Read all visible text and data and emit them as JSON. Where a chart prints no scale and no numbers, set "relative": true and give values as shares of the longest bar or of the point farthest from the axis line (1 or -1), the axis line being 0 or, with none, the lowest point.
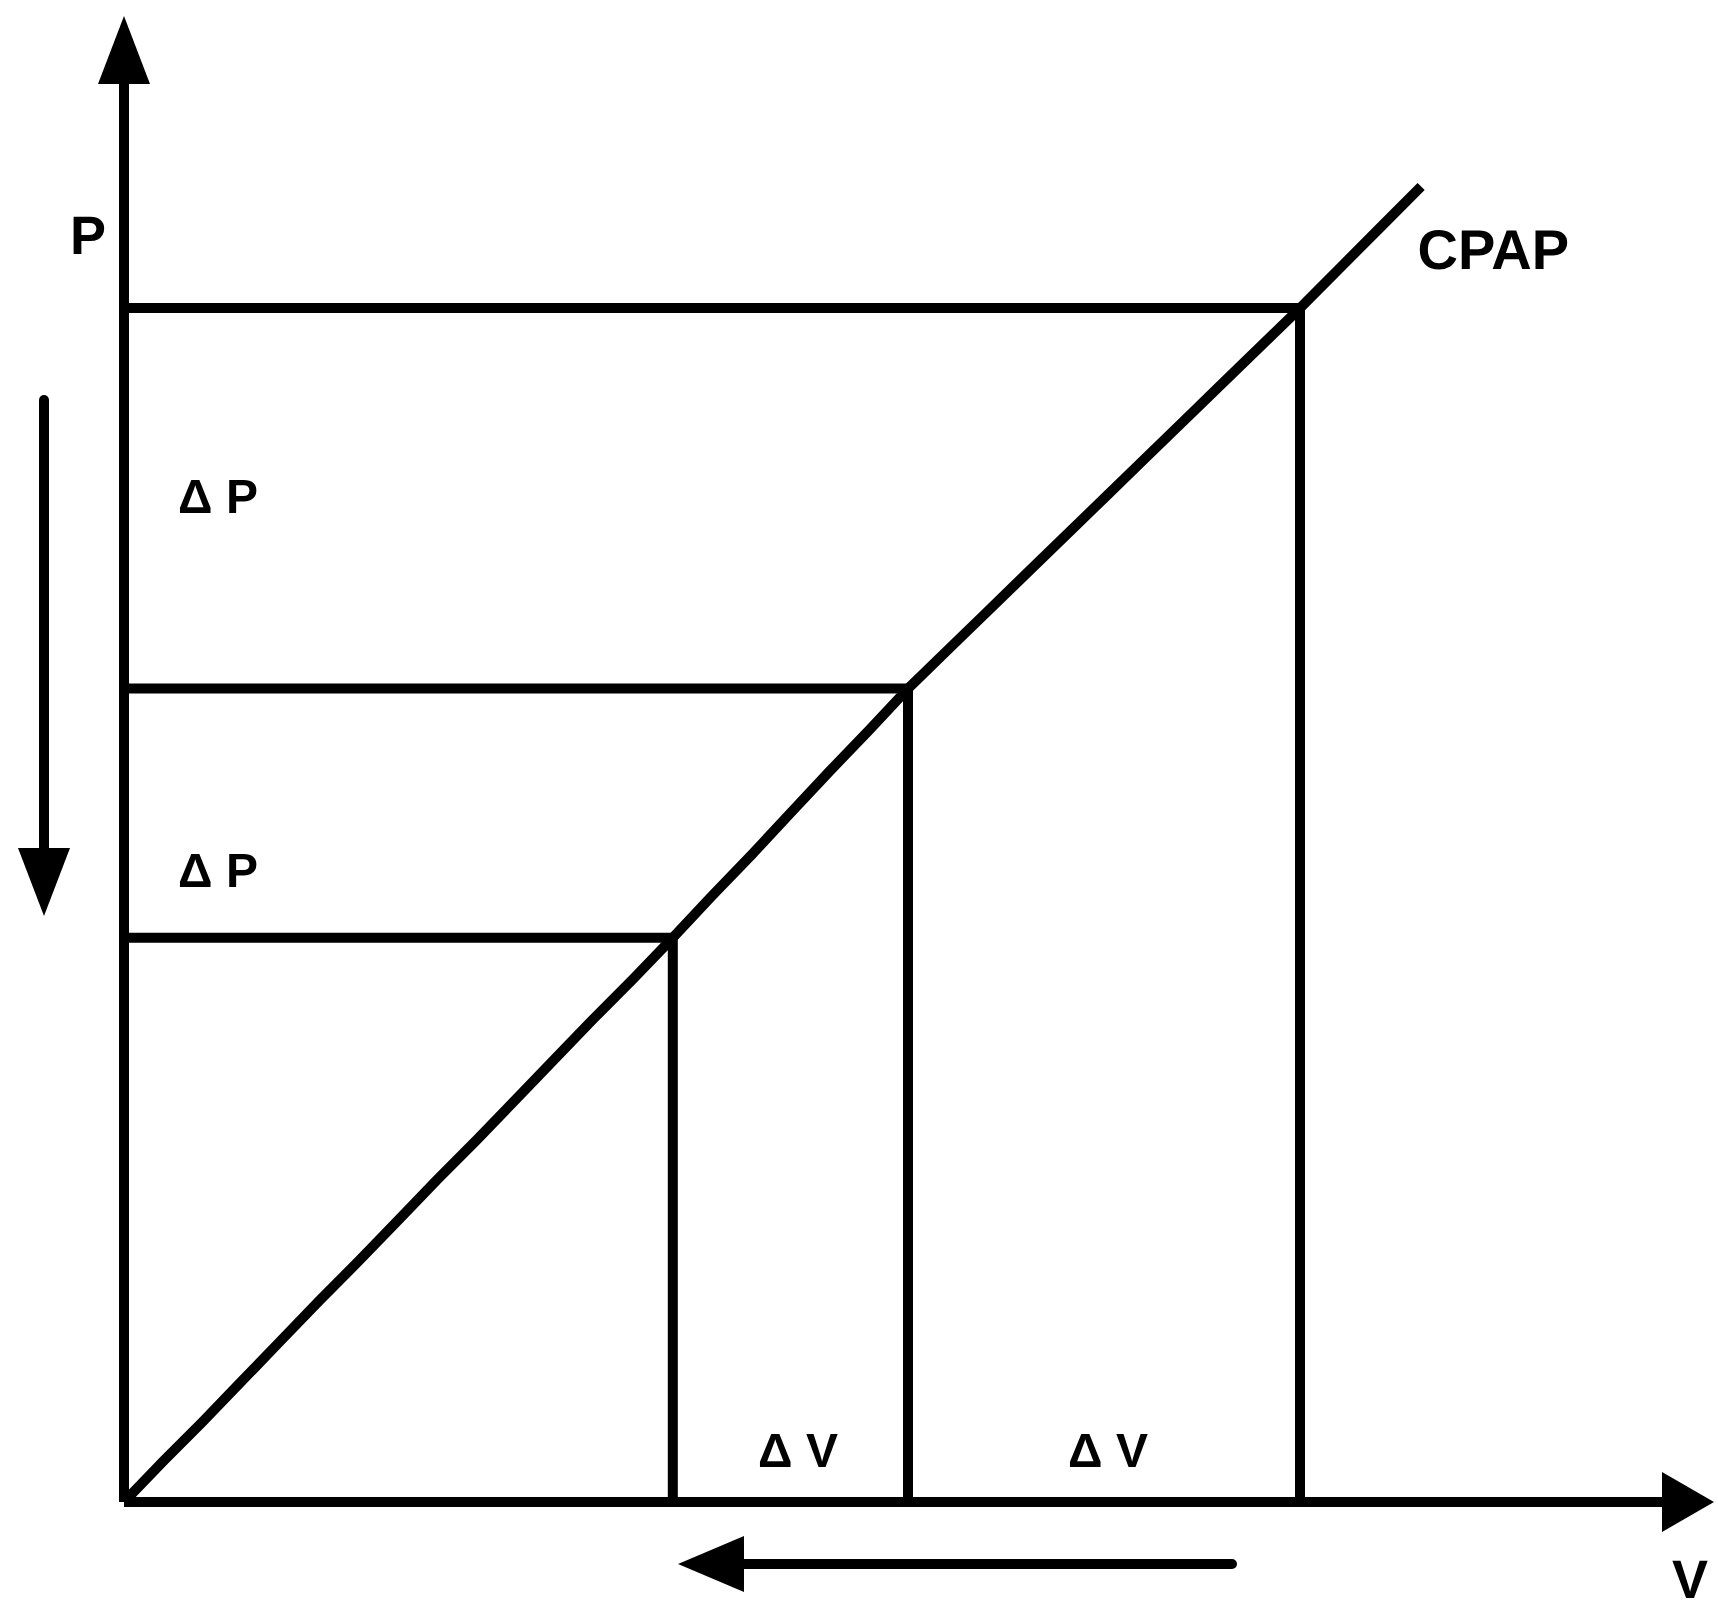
{
  "chart_data": {
    "type": "line",
    "relative": true,
    "xlabel": "V",
    "ylabel": "P",
    "marker": "none",
    "categories": [
      null,
      null,
      null,
      null,
      null,
      null,
      null,
      null,
      null,
      null,
      null,
      null,
      null,
      null,
      null,
      null,
      null,
      null,
      null,
      null,
      null,
      null,
      null,
      null,
      null,
      null,
      null,
      null,
      null,
      null,
      null,
      null,
      null,
      null,
      null,
      null,
      null,
      null,
      null,
      null,
      null
    ],
    "series": [
      {
        "name": "CPAP",
        "color": "#000000",
        "values": [
          0,
          0.031,
          0.061,
          0.092,
          0.123,
          0.154,
          0.184,
          0.215,
          0.246,
          0.276,
          0.307,
          0.338,
          0.369,
          0.399,
          0.43,
          0.462,
          0.493,
          0.525,
          0.557,
          0.588,
          0.62,
          0.649,
          0.678,
          0.707,
          0.736,
          0.765,
          0.794,
          0.823,
          0.852,
          0.881,
          0.91,
          0.94,
          0.97,
          1,
          null,
          null,
          null,
          null,
          null,
          null,
          null
        ]
      },
      {
        "type": "step",
        "color": "#000000",
        "values": [
          0.43,
          0.43,
          0.43,
          0.43,
          0.43,
          0.43,
          0.43,
          0.43,
          0.43,
          0.43,
          0.43,
          0.43,
          0.43,
          0.43,
          0,
          null,
          null,
          null,
          null,
          null,
          null,
          null,
          null,
          null,
          null,
          null,
          null,
          null,
          null,
          null,
          null,
          null,
          null,
          null,
          null,
          null,
          null,
          null,
          null,
          null,
          null
        ]
      },
      {
        "type": "step",
        "color": "#000000",
        "values": [
          0.62,
          0.62,
          0.62,
          0.62,
          0.62,
          0.62,
          0.62,
          0.62,
          0.62,
          0.62,
          0.62,
          0.62,
          0.62,
          0.62,
          0.62,
          0.62,
          0.62,
          0.62,
          0.62,
          0.62,
          0,
          null,
          null,
          null,
          null,
          null,
          null,
          null,
          null,
          null,
          null,
          null,
          null,
          null,
          null,
          null,
          null,
          null,
          null,
          null,
          null
        ]
      },
      {
        "type": "step",
        "color": "#000000",
        "values": [
          0.91,
          0.91,
          0.91,
          0.91,
          0.91,
          0.91,
          0.91,
          0.91,
          0.91,
          0.91,
          0.91,
          0.91,
          0.91,
          0.91,
          0.91,
          0.91,
          0.91,
          0.91,
          0.91,
          0.91,
          0.91,
          0.91,
          0.91,
          0.91,
          0.91,
          0.91,
          0.91,
          0.91,
          0.91,
          0.91,
          0,
          null,
          null,
          null,
          null,
          null,
          null,
          null,
          null,
          null,
          null
        ]
      }
    ],
    "annotations": [
      "Δ P",
      "Δ P",
      "Δ V",
      "Δ V"
    ]
  }
}
